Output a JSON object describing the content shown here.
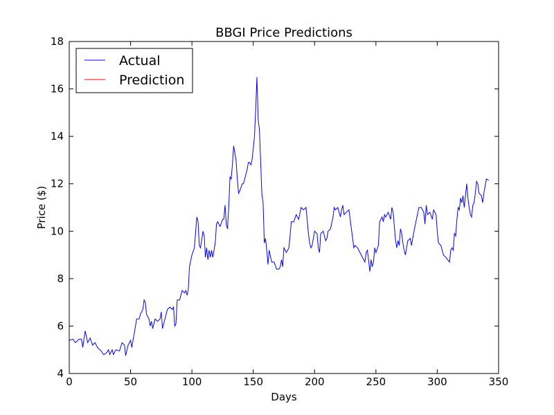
{
  "chart_data": {
    "type": "line",
    "title": "BBGI Price Predictions",
    "xlabel": "Days",
    "ylabel": "Price ($)",
    "xlim": [
      0,
      350
    ],
    "xticks": [
      0,
      50,
      100,
      150,
      200,
      250,
      300,
      350
    ],
    "ylim": [
      4,
      18
    ],
    "yticks": [
      4,
      6,
      8,
      10,
      12,
      14,
      16,
      18
    ],
    "legend": "upper left",
    "series": [
      {
        "name": "Actual",
        "color": "#0000ff",
        "x": [
          0,
          3,
          5,
          8,
          10,
          11,
          13,
          15,
          17,
          19,
          21,
          23,
          26,
          28,
          30,
          32,
          33,
          35,
          36,
          38,
          41,
          43,
          45,
          46,
          48,
          50,
          51,
          53,
          55,
          57,
          58,
          60,
          61,
          62,
          63,
          65,
          66,
          67,
          68,
          70,
          72,
          74,
          75,
          76,
          78,
          80,
          82,
          84,
          85,
          86,
          87,
          88,
          90,
          92,
          94,
          95,
          96,
          97,
          98,
          100,
          102,
          104,
          105,
          106,
          107,
          109,
          110,
          111,
          112,
          113,
          114,
          115,
          116,
          117,
          119,
          120,
          121,
          123,
          125,
          126,
          127,
          128,
          129,
          130,
          131,
          132,
          133,
          134,
          135,
          136,
          137,
          138,
          139,
          141,
          142,
          143,
          145,
          146,
          147,
          148,
          149,
          150,
          151,
          152,
          153,
          154,
          155,
          156,
          157,
          158,
          159,
          160,
          161,
          162,
          163,
          165,
          167,
          169,
          171,
          172,
          173,
          174,
          175,
          177,
          179,
          180,
          181,
          183,
          185,
          187,
          189,
          191,
          193,
          195,
          196,
          197,
          198,
          200,
          202,
          203,
          204,
          205,
          207,
          209,
          210,
          211,
          213,
          215,
          216,
          217,
          219,
          221,
          222,
          223,
          224,
          226,
          228,
          230,
          232,
          233,
          235,
          237,
          239,
          240,
          241,
          242,
          243,
          244,
          245,
          246,
          247,
          248,
          249,
          250,
          252,
          253,
          255,
          256,
          257,
          258,
          260,
          262,
          263,
          264,
          266,
          267,
          268,
          269,
          270,
          271,
          272,
          273,
          274,
          276,
          278,
          279,
          281,
          283,
          285,
          287,
          289,
          290,
          291,
          292,
          294,
          296,
          297,
          299,
          300,
          301,
          303,
          305,
          307,
          310,
          311,
          312,
          313,
          314,
          315,
          316,
          317,
          318,
          319,
          320,
          321,
          322,
          324,
          325,
          326,
          327,
          328,
          329,
          330,
          331,
          332,
          333,
          334,
          336,
          337,
          338,
          340,
          342
        ],
        "values": [
          5.4,
          5.45,
          5.3,
          5.45,
          5.45,
          5.1,
          5.8,
          5.3,
          5.5,
          5.2,
          5.3,
          5.1,
          4.95,
          4.8,
          4.85,
          5.0,
          4.8,
          5.0,
          4.8,
          5.0,
          4.95,
          5.3,
          5.2,
          4.75,
          5.2,
          5.4,
          5.1,
          5.7,
          6.3,
          6.3,
          6.5,
          6.7,
          7.1,
          7.0,
          6.5,
          6.3,
          6.0,
          6.2,
          5.9,
          6.3,
          6.2,
          6.3,
          6.6,
          5.9,
          6.3,
          6.7,
          6.8,
          6.7,
          6.8,
          6.0,
          6.1,
          7.1,
          7.1,
          7.5,
          7.4,
          7.5,
          7.3,
          7.5,
          8.5,
          9.0,
          9.3,
          10.6,
          10.4,
          9.4,
          9.3,
          10.0,
          9.8,
          8.9,
          9.3,
          8.8,
          9.2,
          8.9,
          9.2,
          8.9,
          9.5,
          10.3,
          10.4,
          10.2,
          10.5,
          10.5,
          11.1,
          10.3,
          10.1,
          11.0,
          12.3,
          12.2,
          12.8,
          13.6,
          13.3,
          13.0,
          12.2,
          11.6,
          11.7,
          12.0,
          12.0,
          12.2,
          12.6,
          12.9,
          12.9,
          12.8,
          13.0,
          13.5,
          14.0,
          15.2,
          16.5,
          14.7,
          14.3,
          13.0,
          11.6,
          11.2,
          9.5,
          9.7,
          9.2,
          8.6,
          9.2,
          8.7,
          8.7,
          8.4,
          8.4,
          8.5,
          8.8,
          8.5,
          9.3,
          9.1,
          9.3,
          9.8,
          10.4,
          10.4,
          10.7,
          10.5,
          11.0,
          10.9,
          11.0,
          9.9,
          9.5,
          9.3,
          9.4,
          10.0,
          9.9,
          9.3,
          9.1,
          9.9,
          10.0,
          9.6,
          9.7,
          10.0,
          10.1,
          10.6,
          11.0,
          10.9,
          11.0,
          10.6,
          10.9,
          11.1,
          10.7,
          10.8,
          10.9,
          10.1,
          9.3,
          9.4,
          9.3,
          9.1,
          8.9,
          8.8,
          8.7,
          9.1,
          9.2,
          8.8,
          8.3,
          8.8,
          8.5,
          8.7,
          9.3,
          9.1,
          9.4,
          10.4,
          10.6,
          10.4,
          10.7,
          10.6,
          10.8,
          10.5,
          11.0,
          10.8,
          9.6,
          9.3,
          9.6,
          9.4,
          10.1,
          9.9,
          9.5,
          9.2,
          9.0,
          9.6,
          9.7,
          9.4,
          10.0,
          10.5,
          11.0,
          11.0,
          10.8,
          10.3,
          11.1,
          10.7,
          10.8,
          10.5,
          10.9,
          10.7,
          10.0,
          9.5,
          9.4,
          9.0,
          8.9,
          8.7,
          9.2,
          9.3,
          9.2,
          9.9,
          9.8,
          10.5,
          11.0,
          10.9,
          11.4,
          11.2,
          11.5,
          11.0,
          12.0,
          11.4,
          11.0,
          10.7,
          10.6,
          11.1,
          11.2,
          11.6,
          12.1,
          12.0,
          11.6,
          11.5,
          11.2,
          11.6,
          12.2,
          12.15
        ]
      },
      {
        "name": "Prediction",
        "color": "#ff0000",
        "x": [],
        "values": []
      }
    ]
  }
}
